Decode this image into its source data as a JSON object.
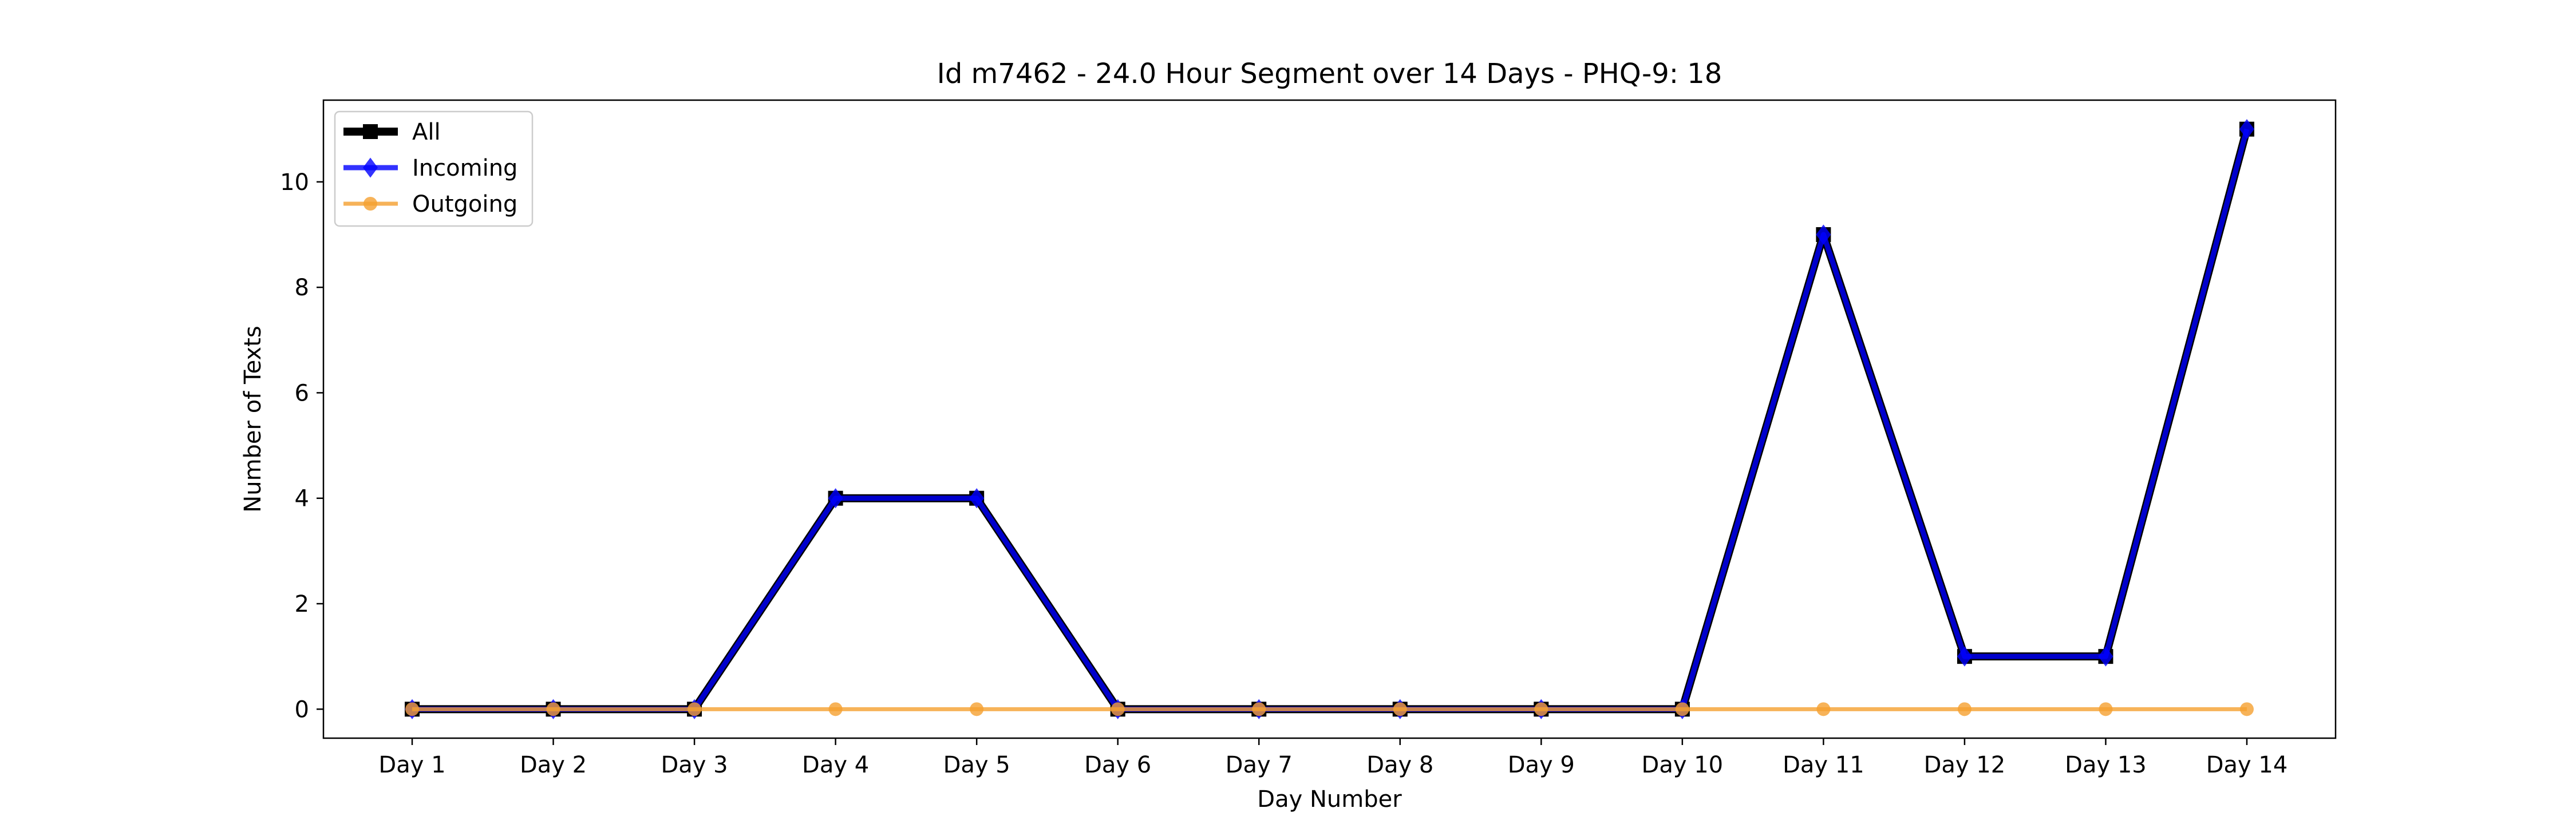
{
  "chart_data": {
    "type": "line",
    "title": "Id m7462 - 24.0 Hour Segment over 14 Days - PHQ-9: 18",
    "xlabel": "Day Number",
    "ylabel": "Number of Texts",
    "categories": [
      "Day 1",
      "Day 2",
      "Day 3",
      "Day 4",
      "Day 5",
      "Day 6",
      "Day 7",
      "Day 8",
      "Day 9",
      "Day 10",
      "Day 11",
      "Day 12",
      "Day 13",
      "Day 14"
    ],
    "ylim": [
      -0.55,
      11.55
    ],
    "yticks": [
      0,
      2,
      4,
      6,
      8,
      10
    ],
    "grid": false,
    "legend_position": "top-left",
    "series": [
      {
        "name": "All",
        "color": "#000000",
        "marker": "square",
        "values": [
          0,
          0,
          0,
          4,
          4,
          0,
          0,
          0,
          0,
          0,
          9,
          1,
          1,
          11
        ]
      },
      {
        "name": "Incoming",
        "color": "#0000ff",
        "marker": "diamond",
        "values": [
          0,
          0,
          0,
          4,
          4,
          0,
          0,
          0,
          0,
          0,
          9,
          1,
          1,
          11
        ]
      },
      {
        "name": "Outgoing",
        "color": "#f5a030",
        "marker": "circle",
        "values": [
          0,
          0,
          0,
          0,
          0,
          0,
          0,
          0,
          0,
          0,
          0,
          0,
          0,
          0
        ]
      }
    ]
  }
}
